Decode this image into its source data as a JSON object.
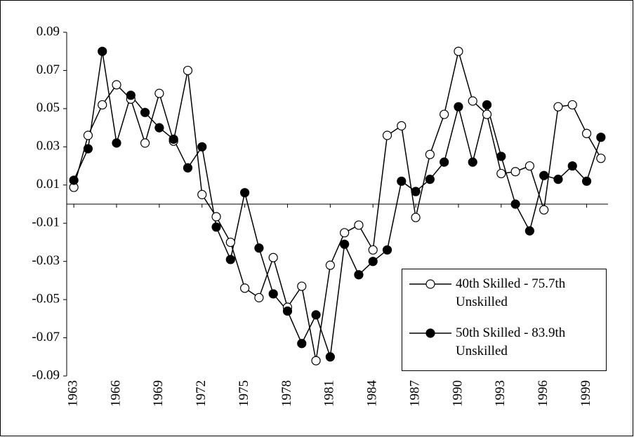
{
  "chart_data": {
    "type": "line",
    "x": [
      1963,
      1964,
      1965,
      1966,
      1967,
      1968,
      1969,
      1970,
      1971,
      1972,
      1973,
      1974,
      1975,
      1976,
      1977,
      1978,
      1979,
      1980,
      1981,
      1982,
      1983,
      1984,
      1985,
      1986,
      1987,
      1988,
      1989,
      1990,
      1991,
      1992,
      1993,
      1994,
      1995,
      1996,
      1997,
      1998,
      1999,
      2000
    ],
    "series": [
      {
        "name": "40th Skilled - 75.7th Unskilled",
        "color": "#ffffff",
        "values": [
          0.0088,
          0.036,
          0.052,
          0.0625,
          0.055,
          0.032,
          0.058,
          0.033,
          0.07,
          0.005,
          -0.0066,
          -0.02,
          -0.044,
          -0.049,
          -0.028,
          -0.054,
          -0.043,
          -0.082,
          -0.032,
          -0.015,
          -0.011,
          -0.024,
          0.036,
          0.041,
          -0.007,
          0.026,
          0.047,
          0.08,
          0.054,
          0.047,
          0.016,
          0.017,
          0.02,
          -0.003,
          0.051,
          0.052,
          0.037,
          0.024
        ]
      },
      {
        "name": "50th Skilled - 83.9th Unskilled",
        "color": "#000000",
        "values": [
          0.0125,
          0.029,
          0.08,
          0.032,
          0.057,
          0.048,
          0.04,
          0.034,
          0.019,
          0.03,
          -0.012,
          -0.029,
          0.006,
          -0.023,
          -0.047,
          -0.056,
          -0.073,
          -0.058,
          -0.08,
          -0.021,
          -0.037,
          -0.03,
          -0.024,
          0.012,
          0.0066,
          0.013,
          0.022,
          0.051,
          0.022,
          0.052,
          0.025,
          0.0,
          -0.014,
          0.015,
          0.013,
          0.02,
          0.012,
          0.035
        ]
      }
    ],
    "xlim": [
      1962.5,
      2000.5
    ],
    "xticks": [
      1963,
      1966,
      1969,
      1972,
      1975,
      1978,
      1981,
      1984,
      1987,
      1990,
      1993,
      1996,
      1999
    ],
    "ylim": [
      -0.09,
      0.09
    ],
    "yticks": [
      0.09,
      0.07,
      0.05,
      0.03,
      0.01,
      -0.01,
      -0.03,
      -0.05,
      -0.07,
      -0.09
    ],
    "legend": "lower right"
  }
}
